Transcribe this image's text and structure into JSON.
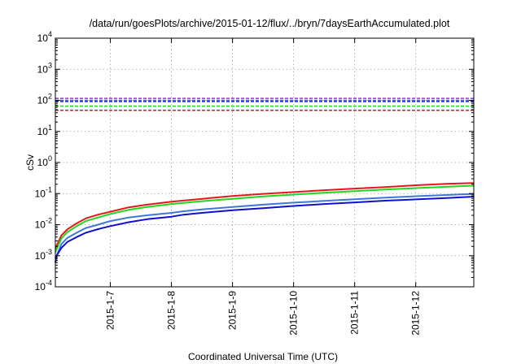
{
  "chart_data": {
    "type": "line",
    "title": "/data/run/goesPlots/archive/2015-01-12/flux/../bryn/7daysEarthAccumulated.plot",
    "xlabel": "Coordinated Universal Time (UTC)",
    "ylabel": "cSv",
    "y_scale": "log",
    "ylim": [
      0.0001,
      10000
    ],
    "xlim": [
      6.1,
      12.95
    ],
    "y_ticks": [
      {
        "value": 0.0001,
        "base": "10",
        "exp": "-4"
      },
      {
        "value": 0.001,
        "base": "10",
        "exp": "-3"
      },
      {
        "value": 0.01,
        "base": "10",
        "exp": "-2"
      },
      {
        "value": 0.1,
        "base": "10",
        "exp": "-1"
      },
      {
        "value": 1,
        "base": "10",
        "exp": "0"
      },
      {
        "value": 10,
        "base": "10",
        "exp": "1"
      },
      {
        "value": 100,
        "base": "10",
        "exp": "2"
      },
      {
        "value": 1000,
        "base": "10",
        "exp": "3"
      },
      {
        "value": 10000,
        "base": "10",
        "exp": "4"
      }
    ],
    "x_ticks": [
      {
        "value": 7,
        "label": "2015-1-7"
      },
      {
        "value": 8,
        "label": "2015-1-8"
      },
      {
        "value": 9,
        "label": "2015-1-9"
      },
      {
        "value": 10,
        "label": "2015-1-10"
      },
      {
        "value": 11,
        "label": "2015-1-11"
      },
      {
        "value": 12,
        "label": "2015-1-12"
      }
    ],
    "grid": true,
    "series": [
      {
        "color": "#e8151b",
        "x": [
          6.1,
          6.15,
          6.2,
          6.3,
          6.45,
          6.6,
          6.8,
          7.0,
          7.3,
          7.6,
          8.0,
          8.5,
          9.0,
          9.5,
          10.0,
          10.5,
          11.0,
          11.5,
          12.0,
          12.5,
          12.95
        ],
        "y": [
          0.0017,
          0.0028,
          0.0045,
          0.0072,
          0.011,
          0.016,
          0.021,
          0.026,
          0.036,
          0.044,
          0.055,
          0.068,
          0.083,
          0.098,
          0.112,
          0.128,
          0.145,
          0.162,
          0.185,
          0.205,
          0.22
        ]
      },
      {
        "color": "#1fd81f",
        "x": [
          6.1,
          6.15,
          6.2,
          6.3,
          6.45,
          6.6,
          6.8,
          7.0,
          7.3,
          7.6,
          8.0,
          8.5,
          9.0,
          9.5,
          10.0,
          10.5,
          11.0,
          11.5,
          12.0,
          12.5,
          12.95
        ],
        "y": [
          0.0013,
          0.0022,
          0.0036,
          0.0058,
          0.009,
          0.013,
          0.017,
          0.022,
          0.03,
          0.037,
          0.046,
          0.057,
          0.068,
          0.081,
          0.093,
          0.106,
          0.12,
          0.135,
          0.15,
          0.165,
          0.18
        ]
      },
      {
        "color": "#3d78d8",
        "x": [
          6.1,
          6.15,
          6.2,
          6.3,
          6.45,
          6.6,
          6.8,
          7.0,
          7.3,
          7.6,
          8.0,
          8.2,
          8.5,
          9.0,
          9.5,
          10.0,
          10.5,
          11.0,
          11.5,
          12.0,
          12.5,
          12.95
        ],
        "y": [
          0.0008,
          0.0014,
          0.0024,
          0.0038,
          0.0055,
          0.0078,
          0.01,
          0.013,
          0.017,
          0.02,
          0.024,
          0.027,
          0.031,
          0.037,
          0.044,
          0.051,
          0.058,
          0.066,
          0.074,
          0.082,
          0.09,
          0.098
        ]
      },
      {
        "color": "#1010d0",
        "x": [
          6.1,
          6.12,
          6.2,
          6.3,
          6.45,
          6.6,
          6.8,
          7.0,
          7.3,
          7.6,
          8.0,
          8.2,
          8.5,
          9.0,
          9.5,
          10.0,
          10.5,
          11.0,
          11.5,
          12.0,
          12.5,
          12.95
        ],
        "y": [
          0.0006,
          0.001,
          0.0018,
          0.0028,
          0.004,
          0.0055,
          0.0072,
          0.009,
          0.012,
          0.015,
          0.018,
          0.021,
          0.024,
          0.029,
          0.034,
          0.04,
          0.046,
          0.052,
          0.059,
          0.065,
          0.072,
          0.08
        ]
      }
    ],
    "reference_lines": [
      {
        "color": "#e8151b",
        "y": 48
      },
      {
        "color": "#1fd81f",
        "y": 65
      },
      {
        "color": "#1010d0",
        "y": 92
      },
      {
        "color": "#3d78d8",
        "y": 100
      },
      {
        "color": "#9b30d8",
        "y": 115
      }
    ]
  }
}
